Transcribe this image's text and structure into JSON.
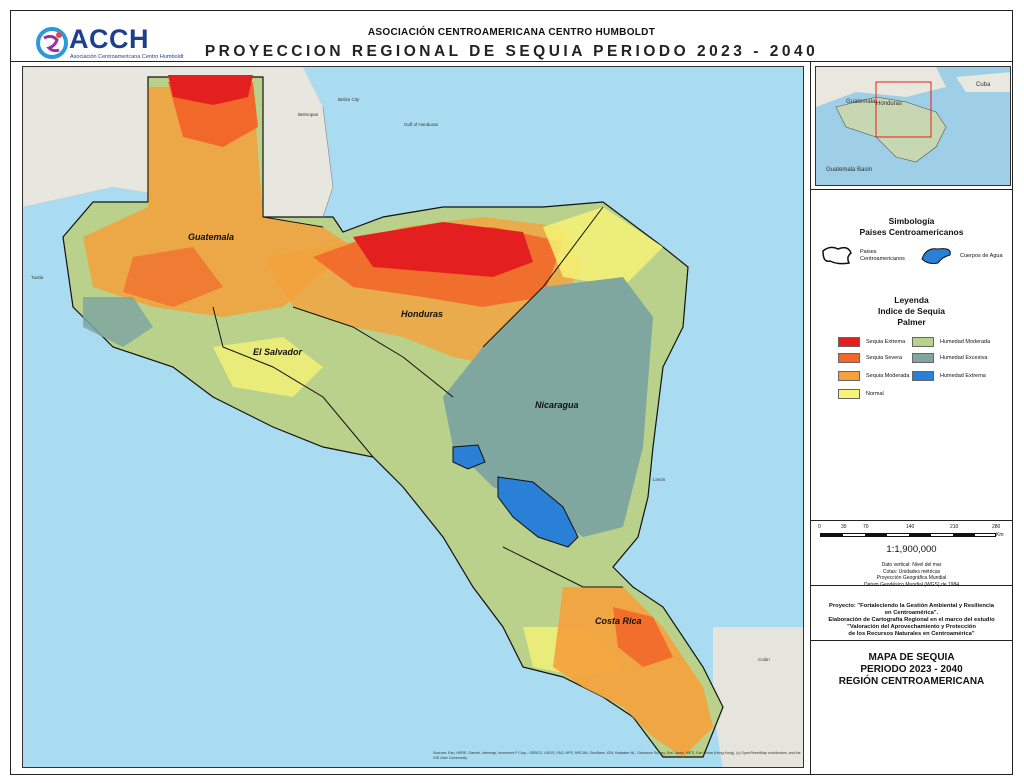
{
  "header": {
    "org_name": "ASOCIACIÓN CENTROAMERICANA CENTRO HUMBOLDT",
    "title": "PROYECCION REGIONAL DE SEQUIA PERIODO 2023 - 2040",
    "logo_text": "ACCH",
    "logo_subtitle": "Asociación Centroamericana Centro Humboldt"
  },
  "map": {
    "country_labels": [
      "Guatemala",
      "El Salvador",
      "Honduras",
      "Nicaragua",
      "Costa Rica"
    ],
    "place_labels": [
      "Belize City",
      "Belmopan",
      "Tuxtla",
      "Gulf of Honduras",
      "Limón",
      "Colón"
    ],
    "attribution": "Sources: Esri, HERE, Garmin, Intermap, increment P Corp., GEBCO, USGS, FAO, NPS, NRCAN, GeoBase, IGN, Kadaster NL, Ordnance Survey, Esri Japan, METI, Esri China (Hong Kong), (c) OpenStreetMap contributors, and the GIS User Community"
  },
  "inset": {
    "labels": [
      "Guatemala",
      "Honduras",
      "Cuba",
      "Guatemala Basin"
    ]
  },
  "symbology": {
    "title_line1": "Simbología",
    "title_line2": "Paises Centroamericanos",
    "countries_label_line1": "Paises",
    "countries_label_line2": "Centroamericanos",
    "water_label": "Cuerpos de Agua"
  },
  "legend": {
    "title_line1": "Leyenda",
    "title_line2": "Indice de Sequia",
    "title_line3": "Palmer",
    "items": [
      {
        "label": "Sequia Extrema",
        "color": "#e31f1f"
      },
      {
        "label": "Sequia Severa",
        "color": "#f2682a"
      },
      {
        "label": "Sequia Moderada",
        "color": "#f5a13b"
      },
      {
        "label": "Normal",
        "color": "#f6f376"
      },
      {
        "label": "Humedad Moderada",
        "color": "#b9d18b"
      },
      {
        "label": "Humedad Excesiva",
        "color": "#7fa7a0"
      },
      {
        "label": "Humedad Extrema",
        "color": "#2a7fd6"
      }
    ]
  },
  "scale": {
    "ticks": [
      "0",
      "35",
      "70",
      "140",
      "210",
      "280"
    ],
    "unit": "Km",
    "ratio": "1:1,900,000",
    "notes": [
      "Dato vertical: Nivel del mar",
      "Cotas: Unidades métricas",
      "Proyección Geográfica Mundial",
      "Datum Geodésico Mundial (WGS) de 1984"
    ]
  },
  "project": {
    "lines": [
      "Proyecto: \"Fortaleciendo la Gestión Ambiental y Resiliencia",
      "en Centroamérica\".",
      "Elaboración de Cartografía Regional en el marco del estudio",
      "\"Valoración del Aprovechamiento y Protección",
      "de los Recursos Naturales en Centroamérica\""
    ]
  },
  "map_title": {
    "lines": [
      "MAPA DE SEQUIA",
      "PERIODO 2023 - 2040",
      "REGIÓN CENTROAMERICANA"
    ]
  }
}
